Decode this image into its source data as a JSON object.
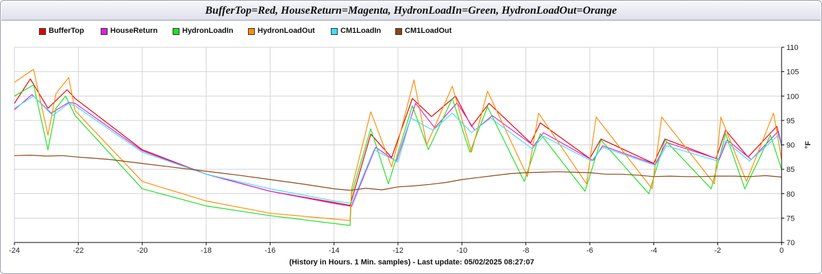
{
  "chart_data": {
    "type": "line",
    "title": "BufferTop=Red, HouseReturn=Magenta, HydronLoadIn=Green, HydronLoadOut=Orange",
    "xlabel": "(History in Hours. 1 Min. samples) - Last update: 05/02/2025 08:27:07",
    "ylabel": "°F",
    "xlim": [
      -24,
      0
    ],
    "ylim": [
      70,
      110
    ],
    "xticks": [
      -24,
      -22,
      -20,
      -18,
      -16,
      -14,
      -12,
      -10,
      -8,
      -6,
      -4,
      -2,
      0
    ],
    "yticks": [
      70,
      75,
      80,
      85,
      90,
      95,
      100,
      105,
      110
    ],
    "grid": true,
    "legend_position": "top-left",
    "series": [
      {
        "name": "BufferTop",
        "color": "#e00000",
        "x": [
          -24,
          -23.5,
          -22.95,
          -22.35,
          -22.1,
          -20,
          -18,
          -16,
          -14,
          -13.5,
          -12.85,
          -12.2,
          -11.55,
          -10.95,
          -10.2,
          -9.7,
          -9.15,
          -7.85,
          -7.55,
          -6.0,
          -5.65,
          -4.0,
          -3.65,
          -2.05,
          -1.75,
          -1.05,
          -0.15,
          0
        ],
        "y": [
          98.5,
          103.5,
          97.5,
          101.3,
          99.5,
          89.0,
          84.0,
          80.5,
          78.2,
          77.6,
          92.2,
          87.4,
          99.5,
          95.8,
          100.0,
          93.8,
          98.5,
          90.4,
          94.5,
          87.2,
          91.2,
          86.2,
          91.2,
          87.2,
          93.0,
          87.5,
          93.8,
          89.8
        ]
      },
      {
        "name": "HouseReturn",
        "color": "#e020e0",
        "x": [
          -24,
          -23.45,
          -22.85,
          -22.3,
          -22.1,
          -20,
          -18,
          -16,
          -14,
          -13.45,
          -12.7,
          -12.05,
          -11.45,
          -10.85,
          -10.15,
          -9.6,
          -9.05,
          -7.75,
          -7.45,
          -5.9,
          -5.6,
          -3.95,
          -3.6,
          -1.95,
          -1.7,
          -0.95,
          -0.1,
          0
        ],
        "y": [
          97.2,
          100.3,
          96.5,
          98.7,
          98.5,
          88.8,
          84.0,
          80.5,
          78.0,
          77.4,
          89.5,
          86.6,
          98.5,
          93.5,
          98.6,
          93.0,
          96.0,
          89.8,
          92.5,
          86.8,
          89.8,
          86.0,
          90.5,
          87.0,
          91.0,
          87.0,
          92.8,
          90.0
        ]
      },
      {
        "name": "HydronLoadIn",
        "color": "#20e020",
        "x": [
          -24,
          -23.4,
          -22.95,
          -22.7,
          -22.4,
          -22.1,
          -20,
          -18,
          -16,
          -13.5,
          -13.45,
          -12.85,
          -12.3,
          -11.55,
          -11.05,
          -10.3,
          -9.75,
          -9.2,
          -8.05,
          -7.55,
          -6.15,
          -5.65,
          -4.15,
          -3.65,
          -2.2,
          -1.75,
          -1.15,
          -0.35,
          0
        ],
        "y": [
          100.0,
          102.3,
          89.0,
          97.5,
          100.0,
          96.0,
          81.0,
          77.5,
          75.5,
          73.5,
          80.0,
          93.3,
          82.0,
          98.0,
          89.0,
          99.5,
          88.5,
          97.8,
          82.5,
          92.3,
          80.5,
          91.0,
          80.0,
          91.0,
          81.0,
          92.3,
          81.0,
          92.0,
          85.0
        ]
      },
      {
        "name": "HydronLoadOut",
        "color": "#ff8c00",
        "x": [
          -24,
          -23.4,
          -22.95,
          -22.7,
          -22.3,
          -22.1,
          -20,
          -18,
          -16,
          -13.5,
          -13.45,
          -12.85,
          -12.2,
          -11.5,
          -11.1,
          -10.3,
          -9.7,
          -9.2,
          -7.95,
          -7.6,
          -6.1,
          -5.8,
          -4.05,
          -3.75,
          -2.1,
          -1.9,
          -1.1,
          -0.25,
          0
        ],
        "y": [
          102.8,
          105.5,
          92.0,
          100.5,
          103.8,
          97.0,
          82.5,
          78.5,
          76.0,
          74.5,
          81.0,
          96.8,
          85.5,
          103.3,
          90.0,
          102.0,
          88.5,
          101.0,
          83.5,
          96.5,
          82.0,
          95.7,
          81.0,
          95.7,
          82.0,
          95.7,
          82.5,
          96.5,
          87.0
        ]
      },
      {
        "name": "CM1LoadIn",
        "color": "#40e0f0",
        "x": [
          -24,
          -23.4,
          -22.8,
          -22.3,
          -22.1,
          -20,
          -18,
          -16,
          -14,
          -13.45,
          -12.75,
          -12.0,
          -11.6,
          -10.9,
          -10.3,
          -9.7,
          -9.1,
          -7.8,
          -7.45,
          -5.95,
          -5.6,
          -3.95,
          -3.6,
          -2.0,
          -1.75,
          -1.0,
          -0.1,
          0
        ],
        "y": [
          97.5,
          100.0,
          96.0,
          98.5,
          98.0,
          88.5,
          84.0,
          81.0,
          78.5,
          78.0,
          89.0,
          86.5,
          95.5,
          93.0,
          96.5,
          92.5,
          95.5,
          89.2,
          91.8,
          86.7,
          89.5,
          85.8,
          89.8,
          86.7,
          90.8,
          86.7,
          92.0,
          89.8
        ]
      },
      {
        "name": "CM1LoadOut",
        "color": "#8b4513",
        "x": [
          -24,
          -23.5,
          -23,
          -22.5,
          -22,
          -21,
          -20,
          -19,
          -18,
          -17,
          -16,
          -15,
          -14,
          -13.5,
          -13,
          -12.5,
          -12,
          -11.5,
          -11,
          -10.5,
          -10,
          -9.5,
          -9,
          -8.5,
          -8,
          -7.5,
          -7,
          -6.5,
          -6,
          -5.5,
          -5,
          -4.5,
          -4,
          -3.5,
          -3,
          -2.5,
          -2,
          -1.5,
          -1,
          -0.5,
          0
        ],
        "y": [
          87.8,
          87.9,
          87.7,
          87.8,
          87.5,
          87.0,
          86.2,
          85.4,
          84.6,
          83.8,
          82.9,
          82.0,
          81.0,
          80.7,
          81.1,
          80.8,
          81.4,
          81.6,
          81.9,
          82.3,
          82.9,
          83.3,
          83.7,
          84.1,
          84.3,
          84.4,
          84.5,
          84.4,
          84.3,
          84.0,
          84.0,
          83.8,
          83.5,
          83.6,
          83.5,
          83.5,
          83.6,
          83.6,
          83.5,
          83.7,
          83.4
        ]
      }
    ]
  }
}
